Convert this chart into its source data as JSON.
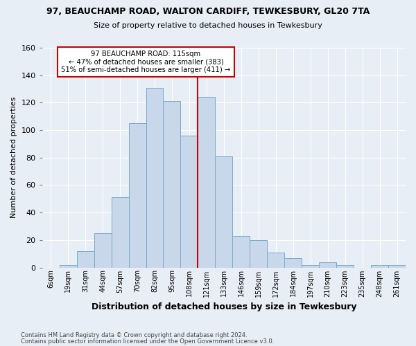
{
  "title": "97, BEAUCHAMP ROAD, WALTON CARDIFF, TEWKESBURY, GL20 7TA",
  "subtitle": "Size of property relative to detached houses in Tewkesbury",
  "xlabel": "Distribution of detached houses by size in Tewkesbury",
  "ylabel": "Number of detached properties",
  "bar_labels": [
    "6sqm",
    "19sqm",
    "31sqm",
    "44sqm",
    "57sqm",
    "70sqm",
    "82sqm",
    "95sqm",
    "108sqm",
    "121sqm",
    "133sqm",
    "146sqm",
    "159sqm",
    "172sqm",
    "184sqm",
    "197sqm",
    "210sqm",
    "223sqm",
    "235sqm",
    "248sqm",
    "261sqm"
  ],
  "bar_values": [
    0,
    2,
    12,
    25,
    51,
    105,
    131,
    121,
    96,
    124,
    81,
    23,
    20,
    11,
    7,
    2,
    4,
    2,
    0,
    2,
    2
  ],
  "bar_color": "#c8d8ea",
  "bar_edgecolor": "#7aaac8",
  "vline_x": 9.5,
  "vline_color": "#cc0000",
  "annotation_text": "97 BEAUCHAMP ROAD: 115sqm\n← 47% of detached houses are smaller (383)\n51% of semi-detached houses are larger (411) →",
  "annotation_box_color": "#ffffff",
  "annotation_box_edgecolor": "#cc0000",
  "ylim": [
    0,
    160
  ],
  "yticks": [
    0,
    20,
    40,
    60,
    80,
    100,
    120,
    140,
    160
  ],
  "grid_color": "#ffffff",
  "background_color": "#e8eef5",
  "footer_line1": "Contains HM Land Registry data © Crown copyright and database right 2024.",
  "footer_line2": "Contains public sector information licensed under the Open Government Licence v3.0."
}
